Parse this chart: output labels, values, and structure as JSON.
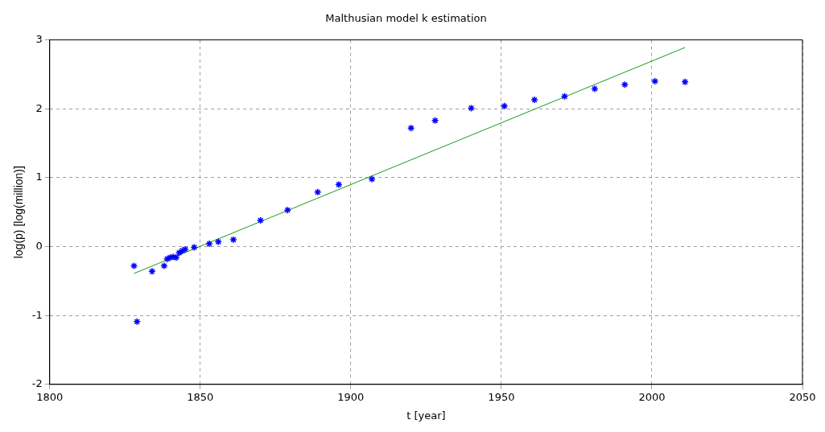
{
  "chart_data": {
    "type": "scatter",
    "title": "Malthusian model k estimation",
    "xlabel": "t [year]",
    "ylabel": "log(p) [log(million)]",
    "xlim": [
      1800,
      2050
    ],
    "xticks": [
      1800,
      1850,
      1900,
      1950,
      2000,
      2050
    ],
    "ylim": [
      -2,
      3
    ],
    "yticks": [
      -2,
      -1,
      0,
      1,
      2,
      3
    ],
    "grid": true,
    "legend": false,
    "marker": "cross",
    "series": [
      {
        "type": "scatter",
        "color": "#0000ff",
        "x": [
          1828,
          1829,
          1834,
          1838,
          1839,
          1840,
          1841,
          1842,
          1843,
          1844,
          1845,
          1848,
          1853,
          1856,
          1861,
          1870,
          1879,
          1889,
          1896,
          1907,
          1920,
          1928,
          1940,
          1951,
          1961,
          1971,
          1981,
          1991,
          2001,
          2011
        ],
        "values": [
          -0.28,
          -1.09,
          -0.36,
          -0.28,
          -0.18,
          -0.16,
          -0.15,
          -0.16,
          -0.09,
          -0.06,
          -0.04,
          -0.01,
          0.04,
          0.07,
          0.1,
          0.38,
          0.53,
          0.79,
          0.9,
          0.98,
          1.72,
          1.83,
          2.01,
          2.04,
          2.13,
          2.18,
          2.29,
          2.35,
          2.4,
          2.39
        ]
      },
      {
        "type": "line",
        "color": "#1a9a1a",
        "x": [
          1828,
          2011
        ],
        "values": [
          -0.39,
          2.89
        ],
        "marker": "none",
        "line_style": "solid"
      }
    ]
  }
}
